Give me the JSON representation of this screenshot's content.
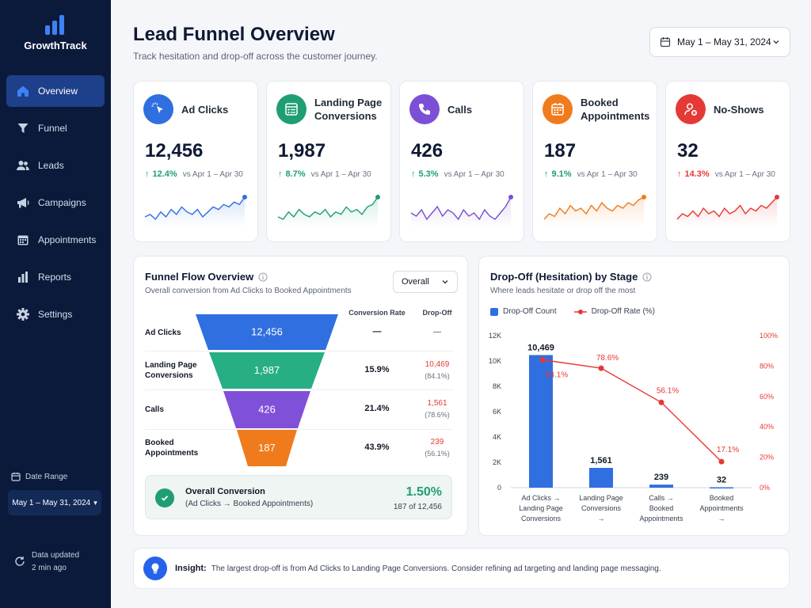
{
  "app": {
    "name": "GrowthTrack"
  },
  "sidebar": {
    "items": [
      {
        "label": "Overview",
        "icon": "home-icon",
        "active": true
      },
      {
        "label": "Funnel",
        "icon": "funnel-icon"
      },
      {
        "label": "Leads",
        "icon": "users-icon"
      },
      {
        "label": "Campaigns",
        "icon": "megaphone-icon"
      },
      {
        "label": "Appointments",
        "icon": "calendar-icon"
      },
      {
        "label": "Reports",
        "icon": "bar-chart-icon"
      },
      {
        "label": "Settings",
        "icon": "gear-icon"
      }
    ],
    "date_range_label": "Date Range",
    "date_range_value": "May 1 – May 31, 2024",
    "updated_line1": "Data updated",
    "updated_line2": "2 min ago"
  },
  "header": {
    "title": "Lead Funnel Overview",
    "subtitle": "Track hesitation and drop-off across the customer journey.",
    "date_range": "May 1 – May 31, 2024"
  },
  "kpis": [
    {
      "label": "Ad Clicks",
      "value": "12,456",
      "delta": "12.4%",
      "direction": "up",
      "compare": "vs Apr 1 – Apr 30",
      "color": "#2f6fe0",
      "icon": "cursor-click-icon",
      "trend": [
        5,
        6,
        4,
        7,
        5,
        8,
        6,
        9,
        7,
        6,
        8,
        5,
        7,
        9,
        8,
        10,
        9,
        11,
        10,
        13
      ]
    },
    {
      "label": "Landing Page Conversions",
      "value": "1,987",
      "delta": "8.7%",
      "direction": "up",
      "compare": "vs Apr 1 – Apr 30",
      "color": "#1f9e73",
      "icon": "form-icon",
      "trend": [
        6,
        5,
        8,
        6,
        9,
        7,
        6,
        8,
        7,
        9,
        6,
        8,
        7,
        10,
        8,
        9,
        7,
        10,
        11,
        14
      ]
    },
    {
      "label": "Calls",
      "value": "426",
      "delta": "5.3%",
      "direction": "up",
      "compare": "vs Apr 1 – Apr 30",
      "color": "#7b4fd6",
      "icon": "phone-icon",
      "trend": [
        8,
        7,
        9,
        6,
        8,
        10,
        7,
        9,
        8,
        6,
        9,
        7,
        8,
        6,
        9,
        7,
        6,
        8,
        10,
        13
      ]
    },
    {
      "label": "Booked Appointments",
      "value": "187",
      "delta": "9.1%",
      "direction": "up",
      "compare": "vs Apr 1 – Apr 30",
      "color": "#f07b1d",
      "icon": "calendar-check-icon",
      "trend": [
        6,
        8,
        7,
        10,
        8,
        11,
        9,
        10,
        8,
        11,
        9,
        12,
        10,
        9,
        11,
        10,
        12,
        11,
        13,
        14
      ]
    },
    {
      "label": "No-Shows",
      "value": "32",
      "delta": "14.3%",
      "direction": "up",
      "compare": "vs Apr 1 – Apr 30",
      "color": "#e53935",
      "icon": "user-x-icon",
      "trend": [
        6,
        8,
        7,
        9,
        7,
        10,
        8,
        9,
        7,
        10,
        8,
        9,
        11,
        8,
        10,
        9,
        11,
        10,
        12,
        14
      ]
    }
  ],
  "funnel": {
    "title": "Funnel Flow Overview",
    "subtitle": "Overall conversion from Ad Clicks to Booked Appointments",
    "filter": "Overall",
    "col_rate": "Conversion Rate",
    "col_drop": "Drop-Off",
    "stages": [
      {
        "label": "Ad Clicks",
        "value": "12,456",
        "rate": "—",
        "drop": "—",
        "drop_pct": "",
        "color": "#2f6fe0"
      },
      {
        "label": "Landing Page Conversions",
        "value": "1,987",
        "rate": "15.9%",
        "drop": "10,469",
        "drop_pct": "(84.1%)",
        "color": "#27ae85"
      },
      {
        "label": "Calls",
        "value": "426",
        "rate": "21.4%",
        "drop": "1,561",
        "drop_pct": "(78.6%)",
        "color": "#8150d8"
      },
      {
        "label": "Booked Appointments",
        "value": "187",
        "rate": "43.9%",
        "drop": "239",
        "drop_pct": "(56.1%)",
        "color": "#f07b1d"
      }
    ],
    "overall_title": "Overall Conversion",
    "overall_sub": "(Ad Clicks → Booked Appointments)",
    "overall_rate": "1.50%",
    "overall_count": "187 of 12,456"
  },
  "dropoff": {
    "title": "Drop-Off (Hesitation) by Stage",
    "subtitle": "Where leads hesitate or drop off the most",
    "legend_bar": "Drop-Off Count",
    "legend_line": "Drop-Off Rate (%)"
  },
  "chart_data": {
    "type": "bar",
    "categories": [
      "Ad Clicks → Landing Page Conversions",
      "Landing Page Conversions → Calls",
      "Calls → Booked Appointments",
      "Booked Appointments → No-Shows"
    ],
    "series": [
      {
        "name": "Drop-Off Count",
        "type": "bar",
        "axis": "left",
        "values": [
          10469,
          1561,
          239,
          32
        ],
        "labels": [
          "10,469",
          "1,561",
          "239",
          "32"
        ],
        "color": "#2f6fe0"
      },
      {
        "name": "Drop-Off Rate (%)",
        "type": "line",
        "axis": "right",
        "values": [
          84.1,
          78.6,
          56.1,
          17.1
        ],
        "labels": [
          "84.1%",
          "78.6%",
          "56.1%",
          "17.1%"
        ],
        "color": "#e53935"
      }
    ],
    "ylim": [
      0,
      12000
    ],
    "y_ticks": [
      "0",
      "2K",
      "4K",
      "6K",
      "8K",
      "10K",
      "12K"
    ],
    "y2lim": [
      0,
      100
    ],
    "y2_ticks": [
      "0%",
      "20%",
      "40%",
      "60%",
      "80%",
      "100%"
    ],
    "legend": "top-left",
    "grid": false
  },
  "insight": {
    "title": "Insight:",
    "text": "The largest drop-off is from Ad Clicks to Landing Page Conversions. Consider refining ad targeting and landing page messaging."
  }
}
